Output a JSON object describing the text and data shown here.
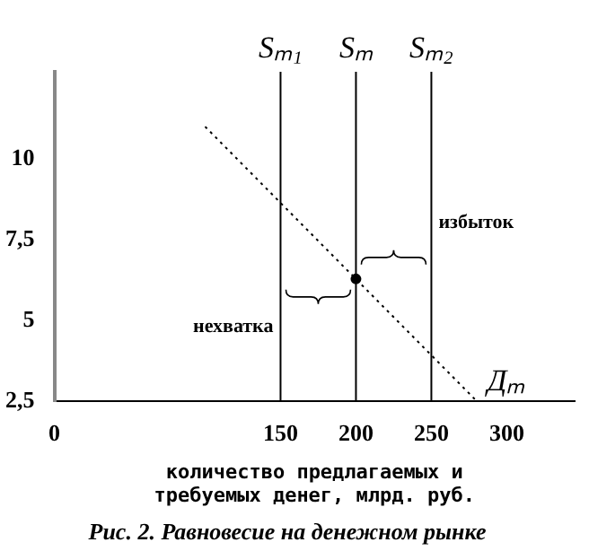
{
  "chart_data": {
    "type": "line",
    "title": "Рис. 2. Равновесие на денежном рынке",
    "xlabel": "количество предлагаемых и требуемых денег, млрд. руб.",
    "xlim": [
      0,
      345
    ],
    "xticks": [
      0,
      150,
      200,
      250,
      300
    ],
    "ylim": [
      2.5,
      12.7
    ],
    "yticks": [
      {
        "value": 2.5,
        "label": "2,5"
      },
      5,
      {
        "value": 7.5,
        "label": "7,5"
      },
      10
    ],
    "grid": false,
    "legend": false,
    "marker": "none",
    "ref_lines": [
      {
        "axis": "x",
        "value": 150,
        "label": "Sₘ₁"
      },
      {
        "axis": "x",
        "value": 200,
        "label": "Sₘ"
      },
      {
        "axis": "x",
        "value": 250,
        "label": "Sₘ₂"
      }
    ],
    "series": [
      {
        "name": "Дₘ",
        "color": "#000000",
        "x": [
          100,
          280
        ],
        "values": [
          11,
          2.5
        ],
        "line_style": "dotted"
      },
      {
        "type": "scatter",
        "color": "#000000",
        "x": [
          200
        ],
        "values": [
          6.28
        ],
        "marker": "circle"
      }
    ],
    "annotations": [
      "нехватка",
      "избыток"
    ]
  }
}
